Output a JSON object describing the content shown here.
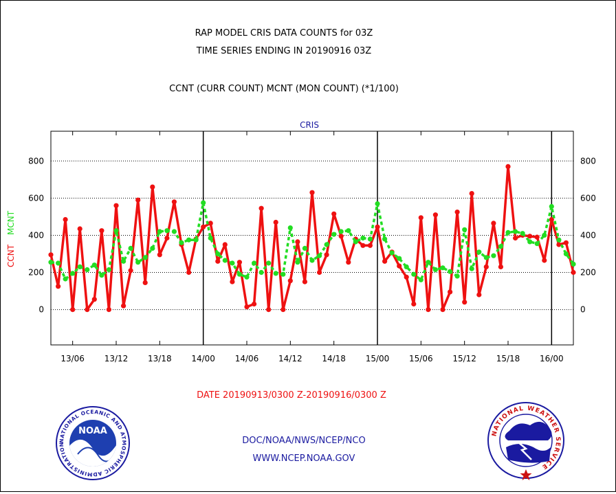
{
  "header": {
    "title_line1": "RAP MODEL CRIS DATA COUNTS for 03Z",
    "title_line2": "TIME SERIES ENDING IN 20190916 03Z",
    "subtitle": "CCNT (CURR COUNT) MCNT (MON COUNT) (*1/100)",
    "panel_label": "CRIS"
  },
  "axis": {
    "ylabel_ccnt": "CCNT",
    "ylabel_mcnt": "MCNT",
    "date_range": "DATE 20190913/0300 Z-20190916/0300 Z"
  },
  "footer": {
    "org": "DOC/NOAA/NWS/NCEP/NCO",
    "url": "WWW.NCEP.NOAA.GOV"
  },
  "logos": {
    "noaa_text": "NOAA",
    "noaa_ring": "NATIONAL OCEANIC AND ATMOSPHERIC ADMINISTRATION · U.S. DEPARTMENT OF COMMERCE ·",
    "nws_ring": "NATIONAL WEATHER SERVICE"
  },
  "colors": {
    "ccnt": "#ee1111",
    "mcnt": "#22dd22",
    "title": "#000000",
    "panel_label": "#1a1aa0",
    "footer": "#1a1aa0",
    "date": "#ee1111"
  },
  "chart_data": {
    "type": "line",
    "x_unit": "hours since 13/03",
    "x": [
      0,
      1,
      2,
      3,
      4,
      5,
      6,
      7,
      8,
      9,
      10,
      11,
      12,
      13,
      14,
      15,
      16,
      17,
      18,
      19,
      20,
      21,
      22,
      23,
      24,
      25,
      26,
      27,
      28,
      29,
      30,
      31,
      32,
      33,
      34,
      35,
      36,
      37,
      38,
      39,
      40,
      41,
      42,
      43,
      44,
      45,
      46,
      47,
      48,
      49,
      50,
      51,
      52,
      53,
      54,
      55,
      56,
      57,
      58,
      59,
      60,
      61,
      62,
      63,
      64,
      65,
      66,
      67,
      68,
      69,
      70,
      71,
      72
    ],
    "xlim": [
      0,
      72
    ],
    "ylim": [
      -190,
      960
    ],
    "yticks": [
      0,
      200,
      400,
      600,
      800
    ],
    "xticks": [
      {
        "x": 3,
        "label": "13/06"
      },
      {
        "x": 9,
        "label": "13/12"
      },
      {
        "x": 15,
        "label": "13/18"
      },
      {
        "x": 21,
        "label": "14/00"
      },
      {
        "x": 27,
        "label": "14/06"
      },
      {
        "x": 33,
        "label": "14/12"
      },
      {
        "x": 39,
        "label": "14/18"
      },
      {
        "x": 45,
        "label": "15/00"
      },
      {
        "x": 51,
        "label": "15/06"
      },
      {
        "x": 57,
        "label": "15/12"
      },
      {
        "x": 63,
        "label": "15/18"
      },
      {
        "x": 69,
        "label": "16/00"
      }
    ],
    "day_boundaries": [
      21,
      45,
      69
    ],
    "grid": true,
    "series": [
      {
        "name": "CCNT",
        "values": [
          295,
          125,
          485,
          0,
          435,
          0,
          55,
          425,
          0,
          560,
          20,
          210,
          590,
          145,
          660,
          295,
          385,
          580,
          350,
          200,
          380,
          445,
          465,
          260,
          350,
          150,
          255,
          15,
          30,
          545,
          0,
          470,
          0,
          155,
          365,
          150,
          630,
          200,
          295,
          515,
          395,
          255,
          380,
          345,
          345,
          445,
          260,
          310,
          235,
          175,
          30,
          495,
          0,
          510,
          0,
          95,
          525,
          40,
          625,
          80,
          230,
          465,
          230,
          770,
          385,
          400,
          395,
          390,
          265,
          485,
          350,
          360,
          200
        ]
      },
      {
        "name": "MCNT",
        "values": [
          255,
          250,
          165,
          195,
          230,
          215,
          240,
          185,
          215,
          425,
          260,
          330,
          255,
          280,
          330,
          420,
          425,
          420,
          360,
          375,
          375,
          575,
          385,
          300,
          265,
          250,
          190,
          175,
          250,
          200,
          250,
          195,
          190,
          440,
          255,
          330,
          265,
          290,
          350,
          405,
          420,
          425,
          365,
          385,
          380,
          570,
          380,
          305,
          275,
          230,
          190,
          160,
          255,
          215,
          225,
          205,
          180,
          430,
          220,
          310,
          280,
          290,
          340,
          415,
          420,
          410,
          365,
          355,
          400,
          555,
          375,
          300,
          245
        ]
      }
    ]
  }
}
